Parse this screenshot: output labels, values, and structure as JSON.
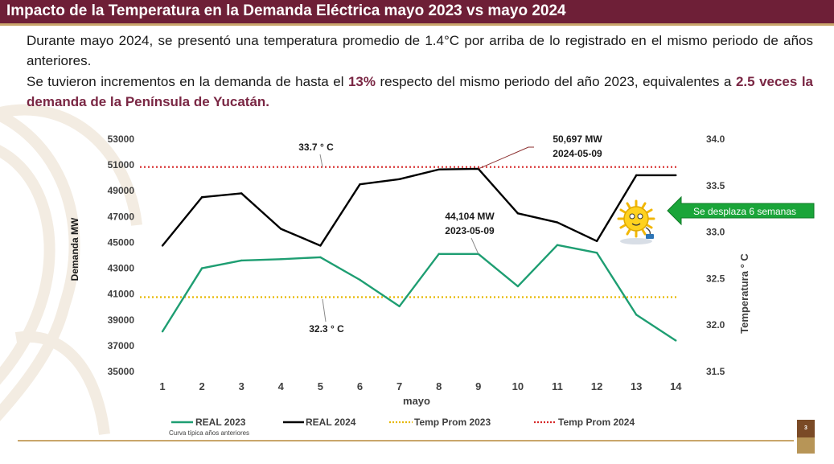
{
  "title": "Impacto de la Temperatura en la Demanda Eléctrica mayo 2023 vs mayo 2024",
  "paragraph1": "Durante mayo 2024, se presentó una temperatura promedio de 1.4°C por arriba de lo registrado en el mismo periodo de años anteriores.",
  "paragraph2": {
    "part1": "Se tuvieron incrementos en la demanda de hasta el ",
    "highlight1": "13%",
    "part2": " respecto del mismo periodo del año 2023, equivalentes a ",
    "highlight2": "2.5 veces la demanda de la Península de Yucatán."
  },
  "page_number": "3",
  "colors": {
    "title_bar": "#6e1f37",
    "accent_gold": "#c9a66b",
    "real_2023": "#1e9e72",
    "real_2024": "#000000",
    "temp_2023": "#e6b800",
    "temp_2024": "#d62828",
    "arrow_green": "#1aa539"
  },
  "chart_data": {
    "type": "line",
    "x": [
      1,
      2,
      3,
      4,
      5,
      6,
      7,
      8,
      9,
      10,
      11,
      12,
      13,
      14
    ],
    "xlabel": "mayo",
    "ylabel": "Demanda  MW",
    "y2label": "Temperatura ° C",
    "ylim": [
      35000,
      53000
    ],
    "yticks": [
      35000,
      37000,
      39000,
      41000,
      43000,
      45000,
      47000,
      49000,
      51000,
      53000
    ],
    "y2lim": [
      31.5,
      34.0
    ],
    "y2ticks": [
      31.5,
      32.0,
      32.5,
      33.0,
      33.5,
      34.0
    ],
    "series": [
      {
        "name": "REAL 2023",
        "style": "solid",
        "values": [
          38100,
          43000,
          43600,
          43700,
          43850,
          42100,
          40050,
          44104,
          44104,
          41600,
          44800,
          44200,
          39400,
          37400
        ]
      },
      {
        "name": "REAL 2024",
        "style": "solid",
        "values": [
          44750,
          48500,
          48800,
          46050,
          44750,
          49500,
          49900,
          50650,
          50697,
          47250,
          46550,
          45100,
          50200,
          50200
        ]
      },
      {
        "name": "Temp Prom 2023",
        "style": "dotted",
        "axis": "y2",
        "value": 32.3
      },
      {
        "name": "Temp Prom 2024",
        "style": "dotted",
        "axis": "y2",
        "value": 33.7
      }
    ],
    "annotations": {
      "temp_2024_label": "33.7 ° C",
      "temp_2023_label": "32.3  ° C",
      "peak_2024_value": "50,697 MW",
      "peak_2024_date": "2024-05-09",
      "peak_2023_value": "44,104 MW",
      "peak_2023_date": "2023-05-09",
      "shift_note": "Se desplaza 6 semanas"
    },
    "legend_note": "Curva típica años anteriores",
    "legend_position": "bottom",
    "grid": false
  }
}
